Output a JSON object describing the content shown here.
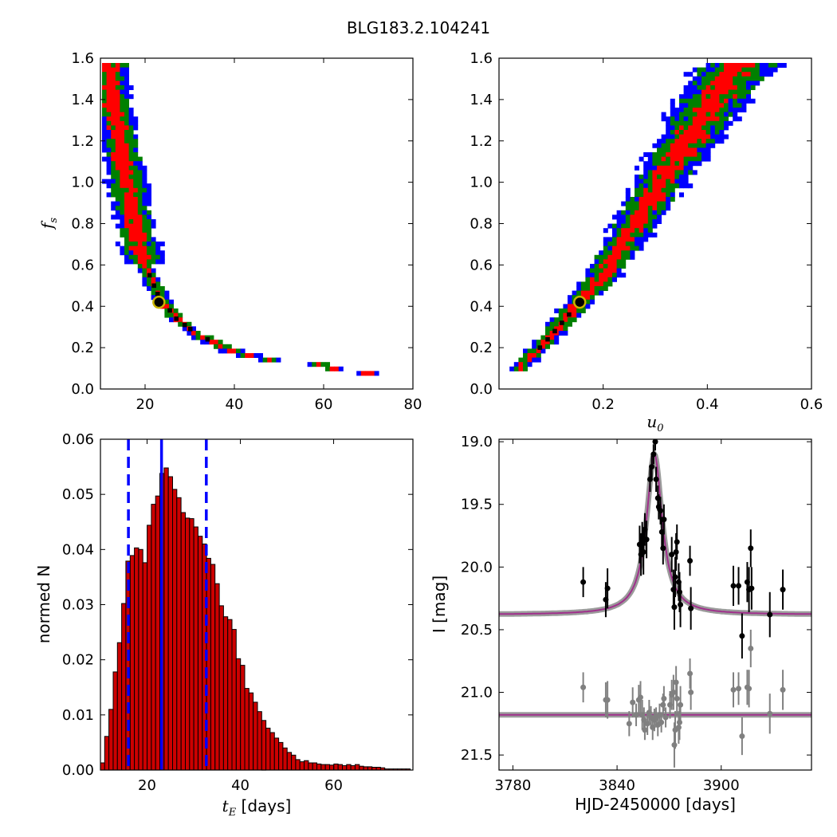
{
  "figure": {
    "title": "BLG183.2.104241",
    "colors": {
      "sigma3": "#0000ff",
      "sigma2": "#008000",
      "sigma1": "#ff0000",
      "peak": "#000000",
      "best_fit_marker": "#c8b400",
      "hist_bar": "#cc0000",
      "model_line": "#a0308c",
      "baseline_data": "#808080"
    }
  },
  "chart_data": [
    {
      "panel": "top-left",
      "type": "heatmap",
      "title": "",
      "xlabel": "",
      "ylabel_symbol": "f",
      "ylabel_sub": "s",
      "xlim": [
        10,
        80
      ],
      "ylim": [
        0.0,
        1.6
      ],
      "xticks": [
        "20",
        "40",
        "60",
        "80"
      ],
      "yticks": [
        "0.0",
        "0.2",
        "0.4",
        "0.6",
        "0.8",
        "1.0",
        "1.2",
        "1.4",
        "1.6"
      ],
      "x_data": "t_E",
      "ridge": [
        [
          12,
          1.57
        ],
        [
          13.5,
          1.3
        ],
        [
          15.5,
          1.05
        ],
        [
          17.5,
          0.82
        ],
        [
          20,
          0.6
        ],
        [
          23,
          0.45
        ],
        [
          27,
          0.34
        ],
        [
          32,
          0.26
        ],
        [
          40,
          0.18
        ],
        [
          50,
          0.13
        ],
        [
          60,
          0.1
        ],
        [
          70,
          0.09
        ],
        [
          76,
          0.1
        ]
      ],
      "best_fit": {
        "x": 23.1,
        "y": 0.42
      }
    },
    {
      "panel": "top-right",
      "type": "heatmap",
      "title": "",
      "xlabel_symbol": "u",
      "xlabel_sub": "0",
      "ylabel": "",
      "xlim": [
        0.0,
        0.6
      ],
      "ylim": [
        0.0,
        1.6
      ],
      "xticks": [
        "0.2",
        "0.4",
        "0.6"
      ],
      "yticks": [
        "0.0",
        "0.2",
        "0.4",
        "0.6",
        "0.8",
        "1.0",
        "1.2",
        "1.4",
        "1.6"
      ],
      "ridge": [
        [
          0.04,
          0.1
        ],
        [
          0.09,
          0.23
        ],
        [
          0.155,
          0.42
        ],
        [
          0.2,
          0.55
        ],
        [
          0.25,
          0.75
        ],
        [
          0.3,
          0.95
        ],
        [
          0.35,
          1.15
        ],
        [
          0.4,
          1.35
        ],
        [
          0.45,
          1.55
        ],
        [
          0.48,
          1.58
        ]
      ],
      "best_fit": {
        "x": 0.155,
        "y": 0.42
      }
    },
    {
      "panel": "bottom-left",
      "type": "bar",
      "title": "",
      "xlabel_symbol": "t",
      "xlabel_sub": "E",
      "xlabel_unit": " [days]",
      "ylabel": "normed N",
      "xlim": [
        10,
        77
      ],
      "ylim": [
        0.0,
        0.06
      ],
      "xticks": [
        "20",
        "40",
        "60"
      ],
      "yticks": [
        "0.00",
        "0.01",
        "0.02",
        "0.03",
        "0.04",
        "0.05",
        "0.06"
      ],
      "bin_start": 10.0,
      "bin_width": 0.91,
      "values": [
        0.0013,
        0.0061,
        0.011,
        0.0178,
        0.0231,
        0.0302,
        0.0379,
        0.0389,
        0.0403,
        0.04,
        0.0376,
        0.0444,
        0.0482,
        0.0497,
        0.0538,
        0.0548,
        0.0532,
        0.0509,
        0.0494,
        0.0467,
        0.0457,
        0.0456,
        0.0441,
        0.0424,
        0.041,
        0.0384,
        0.0373,
        0.0338,
        0.0298,
        0.0278,
        0.0273,
        0.0255,
        0.0202,
        0.019,
        0.0148,
        0.014,
        0.0123,
        0.0106,
        0.009,
        0.0076,
        0.0068,
        0.0058,
        0.005,
        0.004,
        0.0032,
        0.0027,
        0.0019,
        0.0015,
        0.0017,
        0.0013,
        0.0013,
        0.0011,
        0.001,
        0.001,
        0.0009,
        0.0011,
        0.001,
        0.0008,
        0.001,
        0.0008,
        0.001,
        0.0007,
        0.0006,
        0.0006,
        0.0005,
        0.0005,
        0.0004,
        0.0002,
        0.0002,
        0.0002,
        0.0002,
        0.0002,
        0.0002
      ],
      "median": 23.1,
      "lower": 16.0,
      "upper": 32.7
    },
    {
      "panel": "bottom-right",
      "type": "scatter",
      "title": "",
      "xlabel": "HJD-2450000 [days]",
      "ylabel": "I [mag]",
      "xlim": [
        3772,
        3952
      ],
      "ylim": [
        21.62,
        18.98
      ],
      "y_inverted": true,
      "xticks": [
        "3780",
        "3840",
        "3900"
      ],
      "yticks": [
        "19.0",
        "19.5",
        "20.0",
        "20.5",
        "21.0",
        "21.5"
      ],
      "model": {
        "t0": 3861.5,
        "peak_mag": 19.1,
        "base_mag": 20.38,
        "tau": 5.5
      },
      "residual_baseline_mag": 21.18,
      "points": [
        [
          3820.5,
          20.12,
          0.12
        ],
        [
          3833.5,
          20.26,
          0.14
        ],
        [
          3834.5,
          20.17,
          0.16
        ],
        [
          3853.0,
          19.82,
          0.15
        ],
        [
          3853.8,
          19.9,
          0.17
        ],
        [
          3854.5,
          19.78,
          0.14
        ],
        [
          3855.2,
          19.88,
          0.18
        ],
        [
          3856.0,
          19.7,
          0.13
        ],
        [
          3857.0,
          19.78,
          0.15
        ],
        [
          3859.0,
          19.3,
          0.1
        ],
        [
          3860.0,
          19.2,
          0.09
        ],
        [
          3861.0,
          19.1,
          0.08
        ],
        [
          3862.0,
          19.0,
          0.07
        ],
        [
          3862.5,
          19.3,
          0.1
        ],
        [
          3863.5,
          19.45,
          0.1
        ],
        [
          3864.0,
          19.52,
          0.1
        ],
        [
          3865.0,
          19.55,
          0.11
        ],
        [
          3865.8,
          19.72,
          0.12
        ],
        [
          3866.5,
          19.85,
          0.13
        ],
        [
          3867.0,
          19.62,
          0.12
        ],
        [
          3871.5,
          19.9,
          0.14
        ],
        [
          3872.5,
          20.18,
          0.16
        ],
        [
          3873.0,
          20.32,
          0.18
        ],
        [
          3873.5,
          20.08,
          0.16
        ],
        [
          3874.0,
          19.88,
          0.15
        ],
        [
          3874.5,
          19.8,
          0.14
        ],
        [
          3875.5,
          20.12,
          0.15
        ],
        [
          3876.0,
          20.2,
          0.16
        ],
        [
          3876.5,
          20.3,
          0.18
        ],
        [
          3882.0,
          19.95,
          0.12
        ],
        [
          3882.5,
          20.33,
          0.17
        ],
        [
          3907.0,
          20.15,
          0.16
        ],
        [
          3910.0,
          20.15,
          0.15
        ],
        [
          3912.0,
          20.55,
          0.18
        ],
        [
          3915.0,
          20.12,
          0.16
        ],
        [
          3916.0,
          20.18,
          0.18
        ],
        [
          3917.0,
          19.85,
          0.15
        ],
        [
          3917.5,
          20.17,
          0.17
        ],
        [
          3928.0,
          20.38,
          0.18
        ],
        [
          3935.5,
          20.18,
          0.16
        ]
      ],
      "residual_points": [
        [
          3820.5,
          20.96,
          0.12
        ],
        [
          3833.5,
          21.06,
          0.14
        ],
        [
          3834.5,
          21.06,
          0.15
        ],
        [
          3847.0,
          21.25,
          0.1
        ],
        [
          3849.0,
          21.08,
          0.12
        ],
        [
          3851.0,
          21.18,
          0.09
        ],
        [
          3852.5,
          21.06,
          0.12
        ],
        [
          3853.5,
          21.04,
          0.13
        ],
        [
          3854.5,
          21.18,
          0.12
        ],
        [
          3855.5,
          21.22,
          0.1
        ],
        [
          3856.0,
          21.3,
          0.08
        ],
        [
          3857.5,
          21.25,
          0.09
        ],
        [
          3858.5,
          21.16,
          0.1
        ],
        [
          3859.5,
          21.2,
          0.09
        ],
        [
          3860.5,
          21.28,
          0.1
        ],
        [
          3861.5,
          21.22,
          0.09
        ],
        [
          3862.5,
          21.2,
          0.08
        ],
        [
          3863.5,
          21.26,
          0.09
        ],
        [
          3864.5,
          21.18,
          0.09
        ],
        [
          3865.5,
          21.24,
          0.08
        ],
        [
          3866.5,
          21.1,
          0.09
        ],
        [
          3867.0,
          21.05,
          0.1
        ],
        [
          3868.0,
          21.2,
          0.08
        ],
        [
          3870.5,
          21.1,
          0.11
        ],
        [
          3871.5,
          21.02,
          0.12
        ],
        [
          3872.5,
          21.0,
          0.14
        ],
        [
          3873.0,
          21.42,
          0.18
        ],
        [
          3873.5,
          21.3,
          0.15
        ],
        [
          3874.0,
          20.92,
          0.13
        ],
        [
          3874.5,
          21.05,
          0.14
        ],
        [
          3875.5,
          21.28,
          0.13
        ],
        [
          3876.0,
          21.24,
          0.14
        ],
        [
          3876.5,
          21.1,
          0.15
        ],
        [
          3882.0,
          20.85,
          0.12
        ],
        [
          3882.5,
          21.0,
          0.14
        ],
        [
          3907.0,
          20.98,
          0.14
        ],
        [
          3910.0,
          20.97,
          0.13
        ],
        [
          3912.0,
          21.35,
          0.15
        ],
        [
          3915.0,
          20.96,
          0.14
        ],
        [
          3916.0,
          20.97,
          0.15
        ],
        [
          3917.0,
          20.65,
          0.15
        ],
        [
          3928.0,
          21.17,
          0.16
        ],
        [
          3935.5,
          20.98,
          0.16
        ]
      ]
    }
  ]
}
